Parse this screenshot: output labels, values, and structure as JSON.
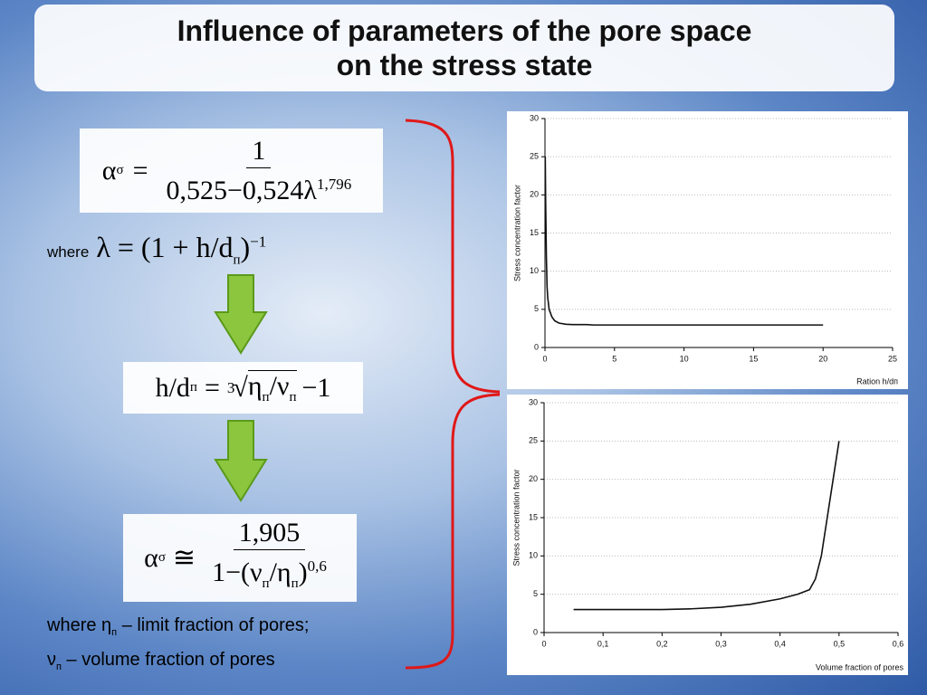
{
  "title": {
    "line1": "Influence of parameters of the pore space",
    "line2": "on the stress state"
  },
  "formula1": {
    "lhs": "α",
    "lhs_sub": "σ",
    "eq": "=",
    "numerator": "1",
    "denominator": "0,525−0,524λ",
    "exponent": "1,796"
  },
  "formula2": {
    "where": "where",
    "lhs": "λ",
    "eq": "=",
    "body": "(1 + h/d",
    "sub": "п",
    "close": ")",
    "exponent": "−1"
  },
  "formula3": {
    "lhs": "h/d",
    "lhs_sub": "п",
    "eq": "=",
    "root_index": "3",
    "eta": "η",
    "eta_sub": "п",
    "slash": "/ν",
    "nu_sub": "п",
    "tail": "−1"
  },
  "formula4": {
    "lhs": "α",
    "lhs_sub": "σ",
    "eq": "≅",
    "numerator": "1,905",
    "den_start": "1−(ν",
    "nu_sub": "п",
    "slash": "/η",
    "eta_sub": "п",
    "close": ")",
    "exponent": "0,6"
  },
  "notes": {
    "line1_start": "where η",
    "line1_sub": "п",
    "line1_rest": "– limit fraction of pores;",
    "line2_start": "ν",
    "line2_sub": "п",
    "line2_rest": "– volume fraction of pores"
  },
  "chart_data": [
    {
      "type": "line",
      "y_label": "Stress concentration factor",
      "x_label": "Ration h/dп",
      "color": "#111111",
      "grid": true,
      "x": [
        0.02,
        0.05,
        0.1,
        0.15,
        0.2,
        0.3,
        0.5,
        0.7,
        1,
        1.5,
        2,
        3,
        3.5,
        5,
        10,
        15,
        20
      ],
      "values": [
        25,
        19,
        12,
        8,
        6.5,
        5,
        4,
        3.5,
        3.2,
        3.05,
        3,
        3,
        2.95,
        2.95,
        2.95,
        2.95,
        2.95
      ],
      "xlim": [
        0,
        25
      ],
      "xticks": [
        0,
        5,
        10,
        15,
        20,
        25
      ],
      "ylim": [
        0,
        30
      ],
      "yticks": [
        0,
        5,
        10,
        15,
        20,
        25,
        30
      ]
    },
    {
      "type": "line",
      "y_label": "Stress concentration factor",
      "x_label": "Volume fraction of pores",
      "color": "#111111",
      "grid": true,
      "x": [
        0.05,
        0.1,
        0.2,
        0.25,
        0.3,
        0.35,
        0.4,
        0.43,
        0.45,
        0.46,
        0.47,
        0.48,
        0.49,
        0.5
      ],
      "values": [
        3,
        3,
        3,
        3.1,
        3.3,
        3.7,
        4.4,
        5,
        5.6,
        7,
        10,
        15,
        20,
        25
      ],
      "xlim": [
        0,
        0.6
      ],
      "xticks": [
        0,
        {
          "value": 0.1,
          "label": "0,1"
        },
        {
          "value": 0.2,
          "label": "0,2"
        },
        {
          "value": 0.3,
          "label": "0,3"
        },
        {
          "value": 0.4,
          "label": "0,4"
        },
        {
          "value": 0.5,
          "label": "0,5"
        },
        {
          "value": 0.6,
          "label": "0,6"
        }
      ],
      "ylim": [
        0,
        30
      ],
      "yticks": [
        0,
        5,
        10,
        15,
        20,
        25,
        30
      ]
    }
  ]
}
